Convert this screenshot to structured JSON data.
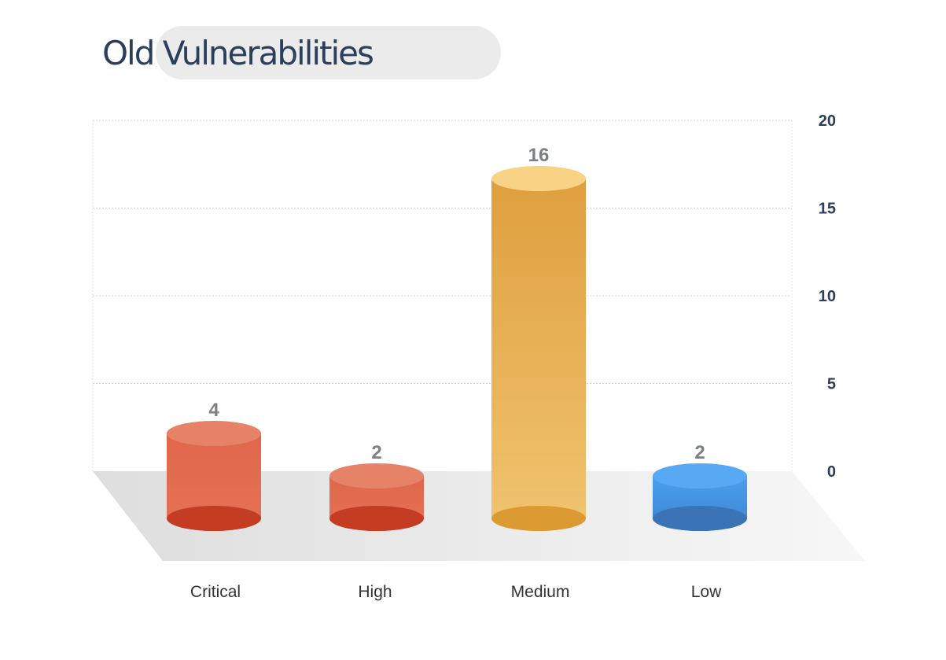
{
  "chart_data": {
    "type": "bar",
    "title": "Old Vulnerabilities",
    "categories": [
      "Critical",
      "High",
      "Medium",
      "Low"
    ],
    "values": [
      4,
      2,
      16,
      2
    ],
    "data_labels": [
      "4",
      "2",
      "16",
      "2"
    ],
    "ylim": [
      0,
      20
    ],
    "yticks": [
      0,
      5,
      10,
      15,
      20
    ],
    "ytick_labels": [
      "0",
      "5",
      "10",
      "15",
      "20"
    ],
    "y_axis_side": "right",
    "grid": true,
    "colors": [
      "#e0664a",
      "#e0664a",
      "#e6b052",
      "#4697e2"
    ]
  }
}
